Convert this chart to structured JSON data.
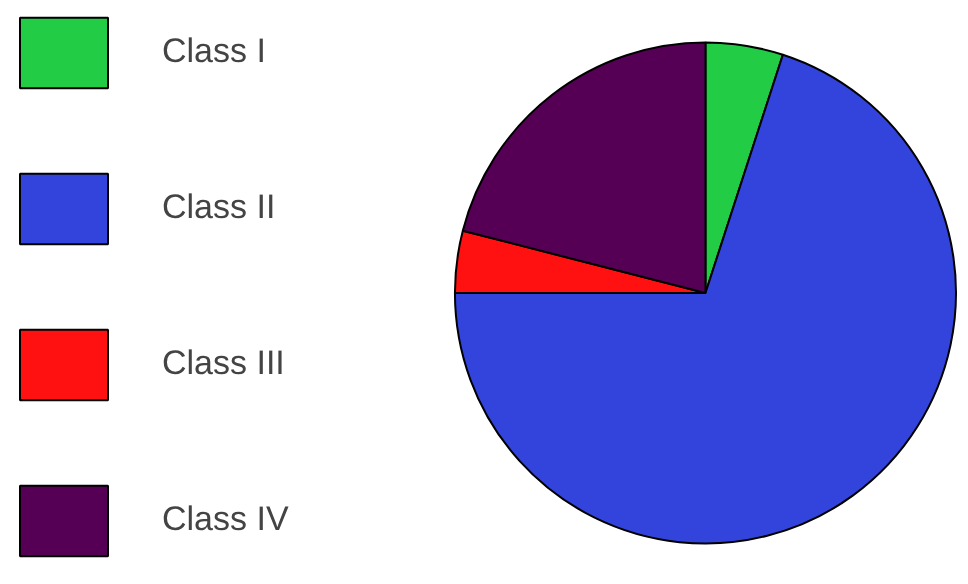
{
  "chart_data": {
    "type": "pie",
    "categories": [
      "Class I",
      "Class II",
      "Class III",
      "Class IV"
    ],
    "values": [
      5,
      70,
      4,
      21
    ],
    "colors": [
      "#22cc44",
      "#3344dd",
      "#ff1111",
      "#550055"
    ],
    "legend": "left"
  }
}
